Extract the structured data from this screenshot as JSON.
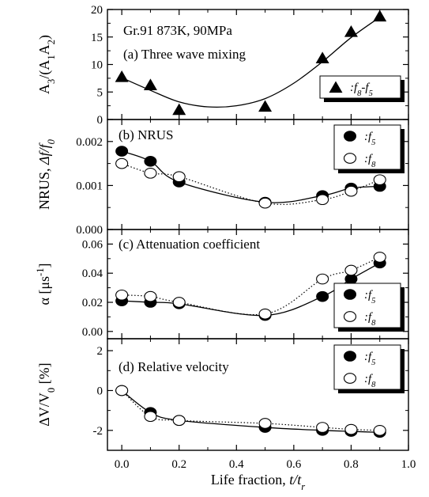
{
  "chart_data": [
    {
      "id": "a",
      "type": "scatter",
      "panel_label": "(a) Three wave mixing",
      "header": "Gr.91  873K, 90MPa",
      "ylabel": "A3/(A1A2)",
      "ylim": [
        0,
        20
      ],
      "yticks": [
        "0",
        "5",
        "10",
        "15",
        "20"
      ],
      "legend_placement": "lower-right",
      "series": [
        {
          "name": ":f8-f5",
          "marker": "filled-triangle",
          "x": [
            0.0,
            0.1,
            0.2,
            0.5,
            0.7,
            0.8,
            0.9
          ],
          "y": [
            7.7,
            6.2,
            1.7,
            2.3,
            11.1,
            15.9,
            18.7
          ],
          "fit": "solid",
          "fit_x": [
            0.0,
            0.1,
            0.2,
            0.3,
            0.4,
            0.5,
            0.6,
            0.7,
            0.8,
            0.9
          ],
          "fit_y": [
            7.6,
            5.3,
            3.2,
            2.3,
            2.5,
            3.8,
            6.6,
            10.5,
            14.9,
            18.6
          ]
        }
      ]
    },
    {
      "id": "b",
      "type": "line",
      "panel_label": "(b) NRUS",
      "ylabel": "NRUS, Δf/f0",
      "ylim": [
        0.0,
        0.0025
      ],
      "yticks": [
        "0.000",
        "0.001",
        "0.002"
      ],
      "legend_placement": "top-right",
      "series": [
        {
          "name": ":f5",
          "marker": "filled-circle",
          "line": "solid",
          "x": [
            0.0,
            0.1,
            0.2,
            0.5,
            0.7,
            0.8,
            0.9
          ],
          "y": [
            0.00178,
            0.00155,
            0.00108,
            0.00062,
            0.00077,
            0.00094,
            0.00098
          ]
        },
        {
          "name": ":f8",
          "marker": "open-circle",
          "line": "dotted",
          "x": [
            0.0,
            0.1,
            0.2,
            0.5,
            0.7,
            0.8,
            0.9
          ],
          "y": [
            0.0015,
            0.00128,
            0.0012,
            0.0006,
            0.00068,
            0.00087,
            0.00113
          ]
        }
      ]
    },
    {
      "id": "c",
      "type": "line",
      "panel_label": "(c) Attenuation coefficient",
      "ylabel": "α [μs-1]",
      "ylim": [
        -0.005,
        0.07
      ],
      "yticks": [
        "0.00",
        "0.02",
        "0.04",
        "0.06"
      ],
      "legend_placement": "lower-right",
      "series": [
        {
          "name": ":f5",
          "marker": "filled-circle",
          "line": "solid",
          "x": [
            0.0,
            0.1,
            0.2,
            0.5,
            0.7,
            0.8,
            0.9
          ],
          "y": [
            0.021,
            0.02,
            0.019,
            0.011,
            0.024,
            0.036,
            0.047
          ]
        },
        {
          "name": ":f8",
          "marker": "open-circle",
          "line": "dotted",
          "x": [
            0.0,
            0.1,
            0.2,
            0.5,
            0.7,
            0.8,
            0.9
          ],
          "y": [
            0.025,
            0.024,
            0.02,
            0.012,
            0.036,
            0.042,
            0.051
          ]
        }
      ]
    },
    {
      "id": "d",
      "type": "line",
      "panel_label": "(d) Relative velocity",
      "ylabel": "ΔV/V0 [%]",
      "xlabel": "Life fraction, t/tr",
      "xlim": [
        -0.05,
        1.0
      ],
      "xticks": [
        "0.0",
        "0.2",
        "0.4",
        "0.6",
        "0.8",
        "1.0"
      ],
      "ylim": [
        -3,
        2.6
      ],
      "yticks": [
        "-2",
        "0",
        "2"
      ],
      "legend_placement": "top-right",
      "series": [
        {
          "name": ":f5",
          "marker": "filled-circle",
          "line": "solid",
          "x": [
            0.0,
            0.1,
            0.2,
            0.5,
            0.7,
            0.8,
            0.9
          ],
          "y": [
            0.0,
            -1.1,
            -1.5,
            -1.85,
            -2.0,
            -2.05,
            -2.1
          ]
        },
        {
          "name": ":f8",
          "marker": "open-circle",
          "line": "dotted",
          "x": [
            0.0,
            0.1,
            0.2,
            0.5,
            0.7,
            0.8,
            0.9
          ],
          "y": [
            0.0,
            -1.3,
            -1.5,
            -1.65,
            -1.85,
            -1.95,
            -2.0
          ]
        }
      ]
    }
  ]
}
